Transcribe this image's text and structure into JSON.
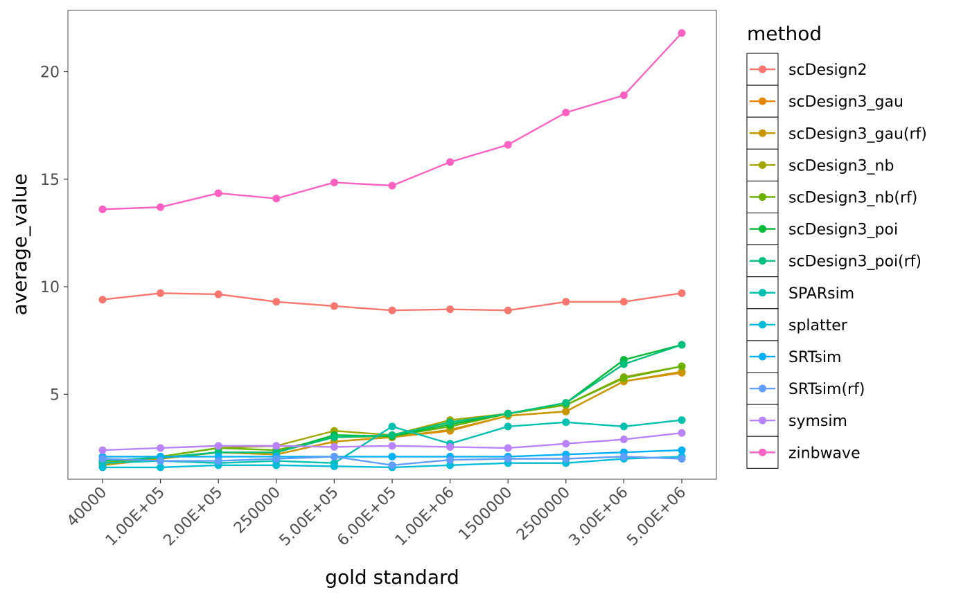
{
  "chart_data": {
    "type": "line",
    "xlabel": "gold standard",
    "ylabel": "average_value",
    "categories": [
      "40000",
      "1.00E+05",
      "2.00E+05",
      "250000",
      "5.00E+05",
      "6.00E+05",
      "1.00E+06",
      "1500000",
      "2500000",
      "3.00E+06",
      "5.00E+06"
    ],
    "ylim": [
      1.05,
      22.85
    ],
    "yticks": [
      5,
      10,
      15,
      20
    ],
    "legend_title": "method",
    "legend_position": "right",
    "grid": false,
    "series": [
      {
        "name": "scDesign2",
        "color": "#F8766D",
        "values": [
          9.4,
          9.7,
          9.65,
          9.3,
          9.1,
          8.9,
          8.95,
          8.9,
          9.3,
          9.3,
          9.7
        ]
      },
      {
        "name": "scDesign3_gau",
        "color": "#E58700",
        "values": [
          1.7,
          2.0,
          2.3,
          2.2,
          2.8,
          3.0,
          3.3,
          4.0,
          4.2,
          5.6,
          6.0
        ]
      },
      {
        "name": "scDesign3_gau(rf)",
        "color": "#C99800",
        "values": [
          1.8,
          2.0,
          2.3,
          2.2,
          2.8,
          3.0,
          3.35,
          4.0,
          4.2,
          5.6,
          6.05
        ]
      },
      {
        "name": "scDesign3_nb",
        "color": "#A3A500",
        "values": [
          1.7,
          2.1,
          2.5,
          2.6,
          3.3,
          3.1,
          3.8,
          4.1,
          4.5,
          5.8,
          6.3
        ]
      },
      {
        "name": "scDesign3_nb(rf)",
        "color": "#6BB100",
        "values": [
          1.8,
          2.1,
          2.5,
          2.4,
          3.0,
          3.05,
          3.5,
          4.1,
          4.5,
          5.75,
          6.3
        ]
      },
      {
        "name": "scDesign3_poi",
        "color": "#00BA38",
        "values": [
          1.9,
          2.05,
          2.3,
          2.3,
          3.1,
          3.05,
          3.6,
          4.1,
          4.6,
          6.6,
          7.3
        ]
      },
      {
        "name": "scDesign3_poi(rf)",
        "color": "#00BF7D",
        "values": [
          1.9,
          2.05,
          2.3,
          2.3,
          3.0,
          3.1,
          3.7,
          4.1,
          4.6,
          6.4,
          7.3
        ]
      },
      {
        "name": "SPARsim",
        "color": "#00C0AF",
        "values": [
          1.8,
          1.9,
          1.8,
          1.9,
          1.8,
          3.5,
          2.7,
          3.5,
          3.7,
          3.5,
          3.8
        ]
      },
      {
        "name": "splatter",
        "color": "#00BCD8",
        "values": [
          1.6,
          1.6,
          1.7,
          1.7,
          1.65,
          1.6,
          1.7,
          1.8,
          1.8,
          2.0,
          2.1
        ]
      },
      {
        "name": "SRTsim",
        "color": "#00B0F6",
        "values": [
          2.1,
          2.1,
          2.1,
          2.1,
          2.1,
          2.1,
          2.1,
          2.1,
          2.2,
          2.3,
          2.4
        ]
      },
      {
        "name": "SRTsim(rf)",
        "color": "#619CFF",
        "values": [
          2.0,
          1.9,
          1.9,
          2.0,
          2.1,
          1.7,
          1.95,
          2.0,
          2.0,
          2.1,
          2.0
        ]
      },
      {
        "name": "symsim",
        "color": "#B983FF",
        "values": [
          2.4,
          2.5,
          2.6,
          2.6,
          2.55,
          2.6,
          2.55,
          2.5,
          2.7,
          2.9,
          3.2
        ]
      },
      {
        "name": "zinbwave",
        "color": "#FF61C3",
        "values": [
          13.6,
          13.7,
          14.35,
          14.1,
          14.85,
          14.7,
          15.8,
          16.6,
          18.1,
          18.9,
          21.8
        ]
      }
    ]
  }
}
